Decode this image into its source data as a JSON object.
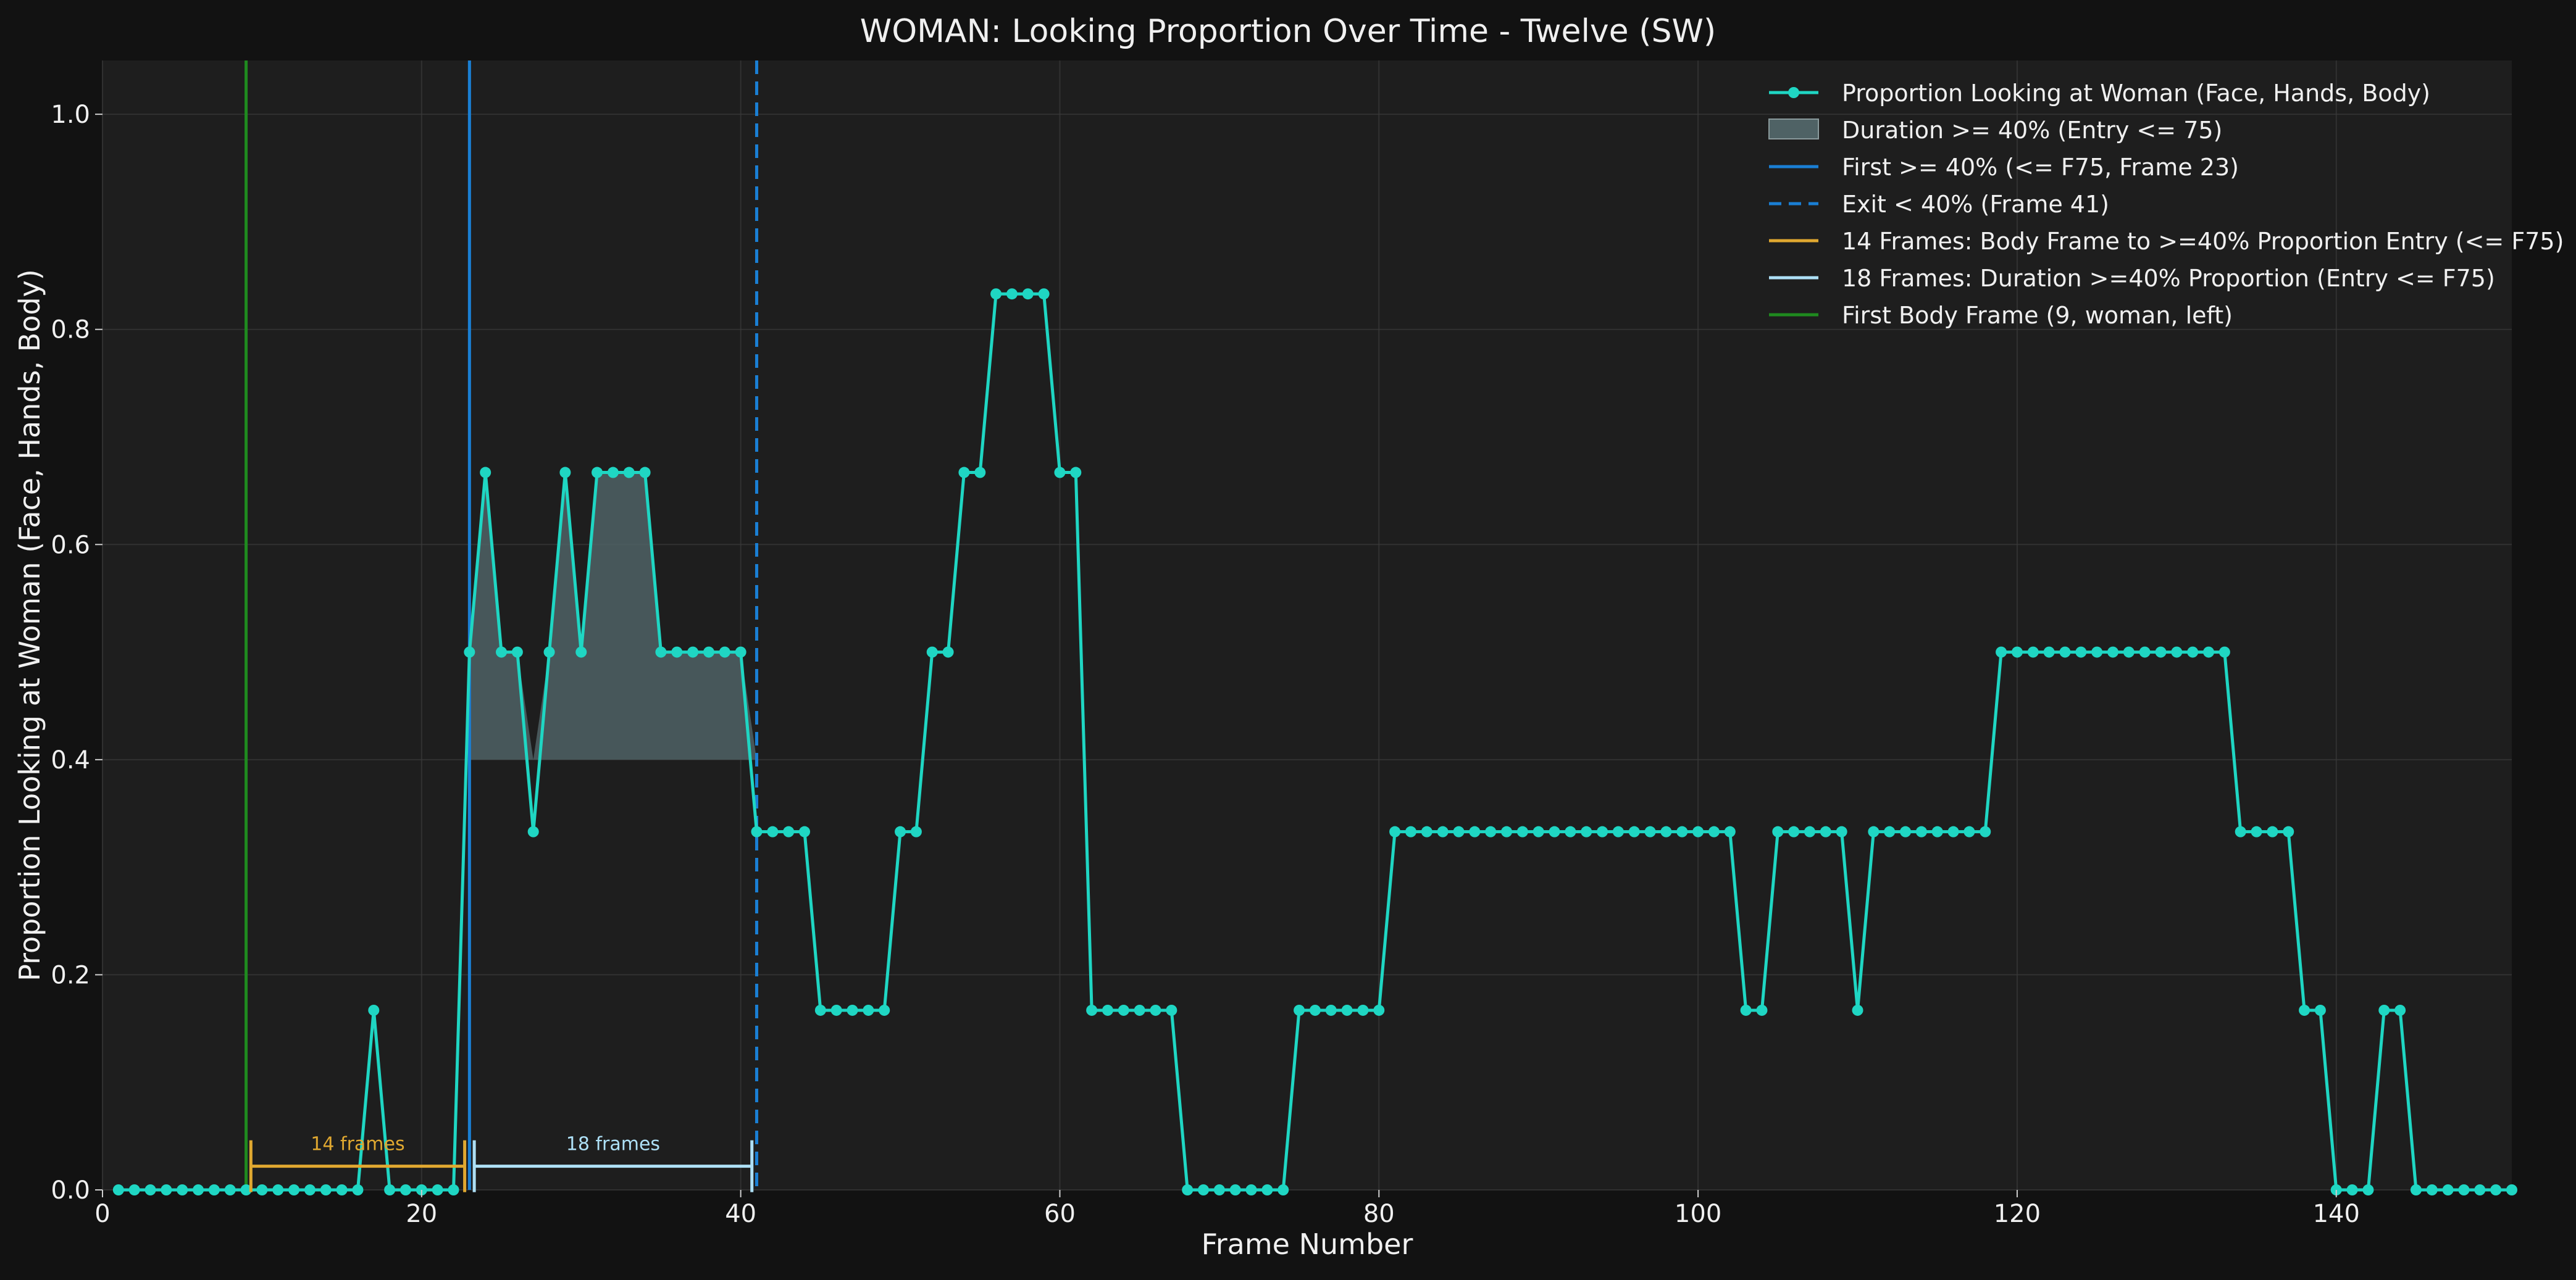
{
  "chart_data": {
    "type": "line",
    "title": "WOMAN: Looking Proportion Over Time - Twelve (SW)",
    "xlabel": "Frame Number",
    "ylabel": "Proportion Looking at Woman (Face, Hands, Body)",
    "xlim": [
      0,
      151
    ],
    "ylim": [
      0,
      1.05
    ],
    "xticks": [
      0,
      20,
      40,
      60,
      80,
      100,
      120,
      140
    ],
    "yticks": [
      0.0,
      0.2,
      0.4,
      0.6,
      0.8,
      1.0
    ],
    "grid": true,
    "legend_position": "top-right",
    "colors": {
      "series": "#1fd6c3",
      "fill": "#4f6265",
      "first_line": "#1a7fd4",
      "exit_line": "#1a7fd4",
      "orange": "#e0a830",
      "lightblue": "#aee0f6",
      "green": "#1f8a1f"
    },
    "series": [
      {
        "name": "Proportion Looking at Woman (Face, Hands, Body)",
        "x": [
          1,
          2,
          3,
          4,
          5,
          6,
          7,
          8,
          9,
          10,
          11,
          12,
          13,
          14,
          15,
          16,
          17,
          18,
          19,
          20,
          21,
          22,
          23,
          24,
          25,
          26,
          27,
          28,
          29,
          30,
          31,
          32,
          33,
          34,
          35,
          36,
          37,
          38,
          39,
          40,
          41,
          42,
          43,
          44,
          45,
          46,
          47,
          48,
          49,
          50,
          51,
          52,
          53,
          54,
          55,
          56,
          57,
          58,
          59,
          60,
          61,
          62,
          63,
          64,
          65,
          66,
          67,
          68,
          69,
          70,
          71,
          72,
          73,
          74,
          75,
          76,
          77,
          78,
          79,
          80,
          81,
          82,
          83,
          84,
          85,
          86,
          87,
          88,
          89,
          90,
          91,
          92,
          93,
          94,
          95,
          96,
          97,
          98,
          99,
          100,
          101,
          102,
          103,
          104,
          105,
          106,
          107,
          108,
          109,
          110,
          111,
          112,
          113,
          114,
          115,
          116,
          117,
          118,
          119,
          120,
          121,
          122,
          123,
          124,
          125,
          126,
          127,
          128,
          129,
          130,
          131,
          132,
          133,
          134,
          135,
          136,
          137,
          138,
          139,
          140,
          141,
          142,
          143,
          144,
          145,
          146,
          147,
          148,
          149,
          150,
          151
        ],
        "y": [
          0,
          0,
          0,
          0,
          0,
          0,
          0,
          0,
          0,
          0,
          0,
          0,
          0,
          0,
          0,
          0,
          0.167,
          0,
          0,
          0,
          0,
          0,
          0.5,
          0.667,
          0.5,
          0.5,
          0.333,
          0.5,
          0.667,
          0.5,
          0.667,
          0.667,
          0.667,
          0.667,
          0.5,
          0.5,
          0.5,
          0.5,
          0.5,
          0.5,
          0.333,
          0.333,
          0.333,
          0.333,
          0.167,
          0.167,
          0.167,
          0.167,
          0.167,
          0.333,
          0.333,
          0.5,
          0.5,
          0.667,
          0.667,
          0.833,
          0.833,
          0.833,
          0.833,
          0.667,
          0.667,
          0.167,
          0.167,
          0.167,
          0.167,
          0.167,
          0.167,
          0,
          0,
          0,
          0,
          0,
          0,
          0,
          0.167,
          0.167,
          0.167,
          0.167,
          0.167,
          0.167,
          0.333,
          0.333,
          0.333,
          0.333,
          0.333,
          0.333,
          0.333,
          0.333,
          0.333,
          0.333,
          0.333,
          0.333,
          0.333,
          0.333,
          0.333,
          0.333,
          0.333,
          0.333,
          0.333,
          0.333,
          0.333,
          0.333,
          0.167,
          0.167,
          0.333,
          0.333,
          0.333,
          0.333,
          0.333,
          0.167,
          0.333,
          0.333,
          0.333,
          0.333,
          0.333,
          0.333,
          0.333,
          0.333,
          0.5,
          0.5,
          0.5,
          0.5,
          0.5,
          0.5,
          0.5,
          0.5,
          0.5,
          0.5,
          0.5,
          0.5,
          0.5,
          0.5,
          0.5,
          0.333,
          0.333,
          0.333,
          0.333,
          0.167,
          0.167,
          0,
          0,
          0,
          0.167,
          0.167,
          0,
          0,
          0,
          0,
          0,
          0,
          0
        ]
      }
    ],
    "fill_region": {
      "from_x": 23,
      "to_x": 41,
      "threshold": 0.4
    },
    "vlines": [
      {
        "x": 9,
        "style": "solid",
        "color_key": "green"
      },
      {
        "x": 23,
        "style": "solid",
        "color_key": "first_line"
      },
      {
        "x": 41,
        "style": "dashed",
        "color_key": "exit_line"
      }
    ],
    "brackets": [
      {
        "x1": 9.3,
        "x2": 22.7,
        "y": 0.022,
        "color_key": "orange",
        "label": "14 frames"
      },
      {
        "x1": 23.3,
        "x2": 40.7,
        "y": 0.022,
        "color_key": "lightblue",
        "label": "18 frames"
      }
    ],
    "legend": [
      {
        "label": "Proportion Looking at Woman (Face, Hands, Body)",
        "kind": "line-marker",
        "color_key": "series"
      },
      {
        "label": "Duration >= 40% (Entry <= 75)",
        "kind": "patch",
        "color_key": "fill"
      },
      {
        "label": "First >= 40% (<= F75, Frame 23)",
        "kind": "line",
        "color_key": "first_line"
      },
      {
        "label": "Exit < 40% (Frame 41)",
        "kind": "dashed",
        "color_key": "exit_line"
      },
      {
        "label": "14 Frames: Body Frame to >=40% Proportion Entry (<= F75)",
        "kind": "line",
        "color_key": "orange"
      },
      {
        "label": "18 Frames: Duration >=40% Proportion (Entry <= F75)",
        "kind": "line",
        "color_key": "lightblue"
      },
      {
        "label": "First Body Frame (9, woman, left)",
        "kind": "line",
        "color_key": "green"
      }
    ]
  }
}
